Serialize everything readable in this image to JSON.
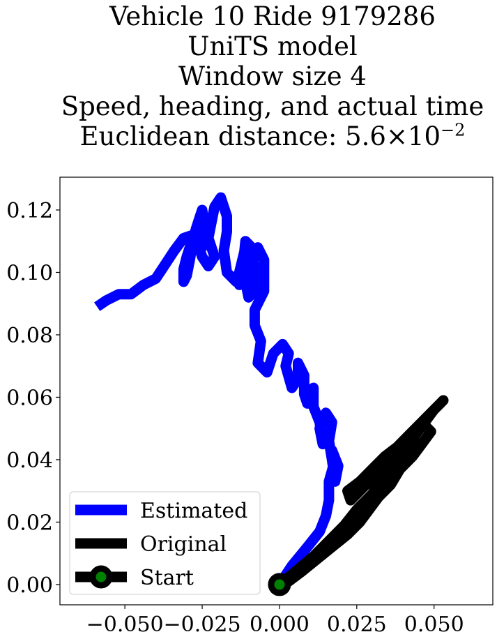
{
  "chart_data": {
    "type": "line",
    "title_lines": [
      "Vehicle 10 Ride 9179286",
      "UniTS model",
      "Window size 4",
      "Speed, heading, and actual time"
    ],
    "title_metric_prefix": "Euclidean distance: 5.6×10",
    "title_metric_exponent": "−2",
    "xlabel": "",
    "ylabel": "",
    "xlim": [
      -0.071,
      0.069
    ],
    "ylim": [
      -0.0065,
      0.1305
    ],
    "x_ticks": [
      -0.05,
      -0.025,
      0.0,
      0.025,
      0.05
    ],
    "x_tick_labels": [
      "−0.050",
      "−0.025",
      "0.000",
      "0.025",
      "0.050"
    ],
    "y_ticks": [
      0.0,
      0.02,
      0.04,
      0.06,
      0.08,
      0.1,
      0.12
    ],
    "y_tick_labels": [
      "0.00",
      "0.02",
      "0.04",
      "0.06",
      "0.08",
      "0.10",
      "0.12"
    ],
    "grid": false,
    "legend_position": "lower-left",
    "series": [
      {
        "name": "Estimated",
        "color": "#0000ff",
        "x": [
          0.0,
          0.004,
          0.009,
          0.013,
          0.015,
          0.016,
          0.016,
          0.018,
          0.017,
          0.019,
          0.018,
          0.017,
          0.016,
          0.017,
          0.015,
          0.013,
          0.014,
          0.013,
          0.011,
          0.011,
          0.009,
          0.008,
          0.008,
          0.006,
          0.006,
          0.004,
          0.002,
          0.003,
          0.001,
          -0.002,
          -0.004,
          -0.007,
          -0.006,
          -0.008,
          -0.008,
          -0.005,
          -0.005,
          -0.005,
          -0.007,
          -0.009,
          -0.011,
          -0.01,
          -0.008,
          -0.008,
          -0.009,
          -0.011,
          -0.012,
          -0.013,
          -0.012,
          -0.011,
          -0.013,
          -0.014,
          -0.017,
          -0.018,
          -0.017,
          -0.017,
          -0.019,
          -0.021,
          -0.022,
          -0.023,
          -0.021,
          -0.023,
          -0.025,
          -0.026,
          -0.025,
          -0.023,
          -0.024,
          -0.027,
          -0.029,
          -0.03,
          -0.031,
          -0.031,
          -0.03,
          -0.029,
          -0.028,
          -0.027,
          -0.026,
          -0.025,
          -0.024,
          -0.025,
          -0.027,
          -0.028,
          -0.031,
          -0.034,
          -0.036,
          -0.038,
          -0.04,
          -0.044,
          -0.048,
          -0.052,
          -0.056,
          -0.059
        ],
        "y": [
          0.0,
          0.006,
          0.012,
          0.017,
          0.022,
          0.027,
          0.033,
          0.04,
          0.043,
          0.038,
          0.033,
          0.04,
          0.046,
          0.052,
          0.055,
          0.05,
          0.045,
          0.052,
          0.057,
          0.063,
          0.058,
          0.061,
          0.067,
          0.071,
          0.066,
          0.063,
          0.07,
          0.074,
          0.077,
          0.074,
          0.068,
          0.071,
          0.078,
          0.083,
          0.088,
          0.094,
          0.098,
          0.104,
          0.108,
          0.104,
          0.097,
          0.092,
          0.094,
          0.1,
          0.108,
          0.11,
          0.1,
          0.096,
          0.104,
          0.108,
          0.1,
          0.097,
          0.1,
          0.107,
          0.113,
          0.118,
          0.124,
          0.121,
          0.116,
          0.111,
          0.105,
          0.102,
          0.105,
          0.108,
          0.112,
          0.113,
          0.117,
          0.112,
          0.108,
          0.105,
          0.101,
          0.097,
          0.099,
          0.104,
          0.11,
          0.114,
          0.117,
          0.12,
          0.113,
          0.108,
          0.109,
          0.112,
          0.111,
          0.107,
          0.104,
          0.101,
          0.098,
          0.096,
          0.093,
          0.093,
          0.091,
          0.089
        ]
      },
      {
        "name": "Original",
        "color": "#000000",
        "x": [
          0.0,
          0.005,
          0.011,
          0.016,
          0.021,
          0.025,
          0.03,
          0.034,
          0.038,
          0.041,
          0.044,
          0.047,
          0.05,
          0.052,
          0.053,
          0.05,
          0.046,
          0.042,
          0.038,
          0.034,
          0.03,
          0.026,
          0.022,
          0.023,
          0.025,
          0.028,
          0.031,
          0.033,
          0.036,
          0.039,
          0.043,
          0.047,
          0.049,
          0.046,
          0.043,
          0.039,
          0.036,
          0.032,
          0.029,
          0.026,
          0.022,
          0.017,
          0.012,
          0.007,
          0.003,
          0.0
        ],
        "y": [
          0.0,
          0.004,
          0.009,
          0.014,
          0.019,
          0.024,
          0.029,
          0.035,
          0.039,
          0.043,
          0.048,
          0.052,
          0.056,
          0.058,
          0.059,
          0.056,
          0.052,
          0.048,
          0.044,
          0.041,
          0.037,
          0.033,
          0.03,
          0.027,
          0.029,
          0.032,
          0.035,
          0.037,
          0.041,
          0.045,
          0.049,
          0.051,
          0.049,
          0.045,
          0.041,
          0.037,
          0.032,
          0.028,
          0.024,
          0.02,
          0.016,
          0.012,
          0.008,
          0.004,
          0.001,
          0.0
        ]
      }
    ],
    "start_point": {
      "name": "Start",
      "x": 0.0,
      "y": 0.0,
      "edge_color": "#000000",
      "face_color": "#008000"
    }
  }
}
